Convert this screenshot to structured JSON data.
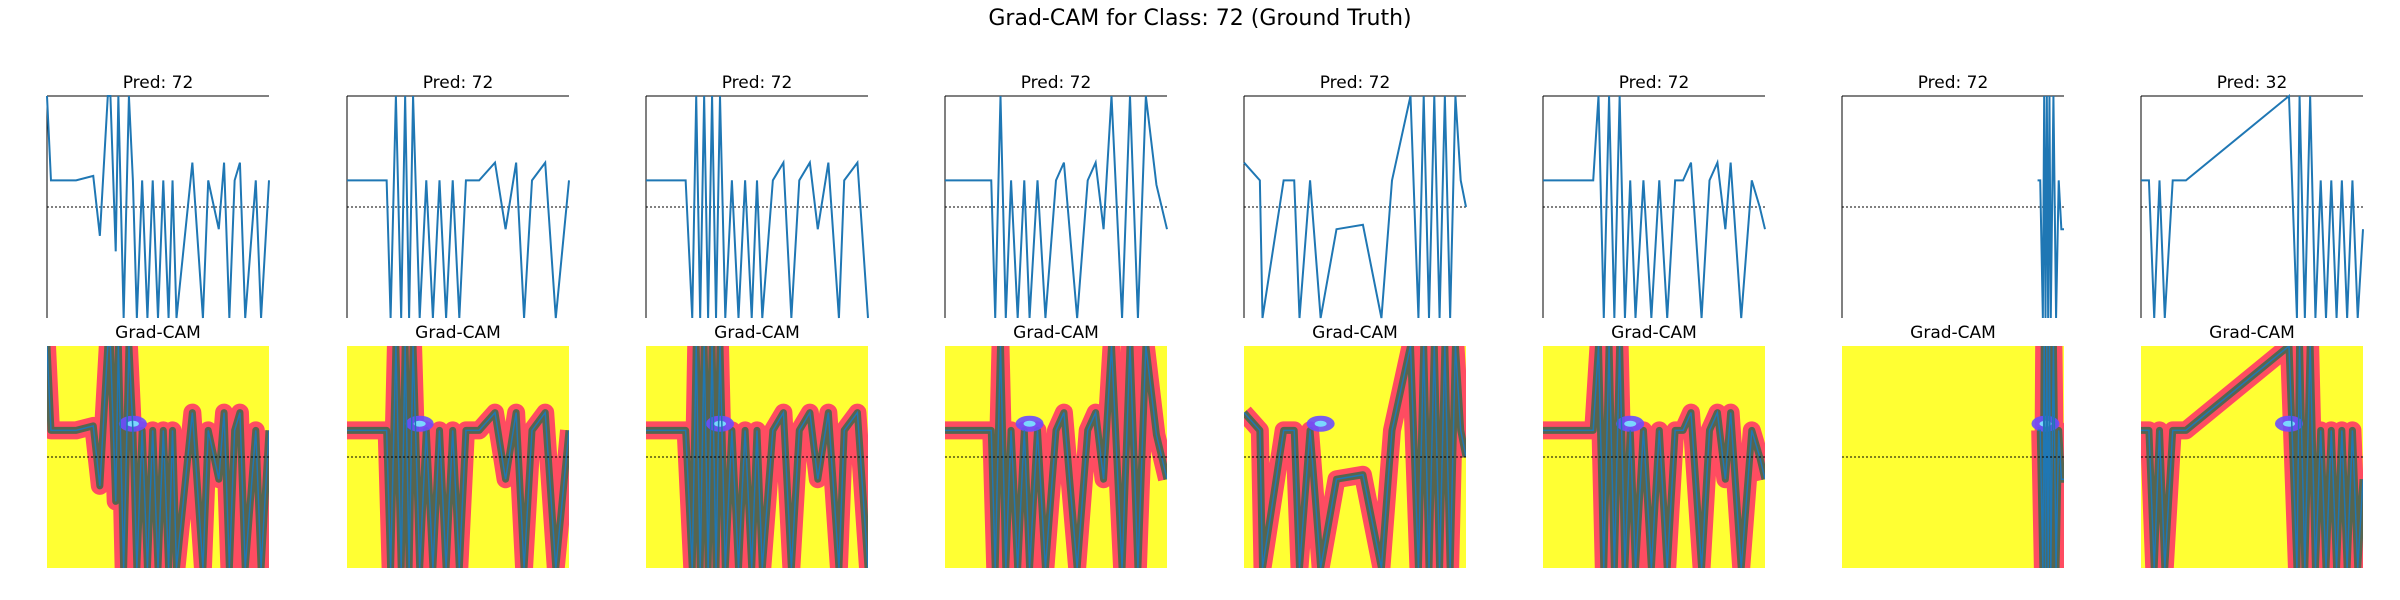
{
  "figure": {
    "title": "Grad-CAM for Class: 72 (Ground Truth)",
    "bottom_row_title": "Grad-CAM"
  },
  "colors": {
    "line": "#1f77b4",
    "heat_low": "#ffff33",
    "heat_mid": "#ff2d6a",
    "heat_high": "#2e6b4a",
    "heat_peak": "#6b4cff",
    "heat_core": "#7ad7ff",
    "threshold_line": "#000000"
  },
  "chart_data": [
    {
      "type": "line",
      "panel": 1,
      "title": "Pred: 72",
      "x": [
        0,
        3,
        22,
        35,
        40,
        46,
        48,
        52,
        54,
        58,
        62,
        65,
        68,
        72,
        76,
        80,
        84,
        88,
        92,
        95,
        98,
        110,
        118,
        122,
        130,
        134,
        138,
        142,
        146,
        150,
        158,
        162,
        168
      ],
      "y": [
        100,
        62,
        62,
        64,
        37,
        100,
        100,
        30,
        100,
        0,
        100,
        62,
        0,
        62,
        0,
        62,
        0,
        62,
        0,
        62,
        0,
        70,
        0,
        62,
        40,
        70,
        0,
        62,
        70,
        0,
        62,
        0,
        62
      ]
    },
    {
      "type": "line",
      "panel": 2,
      "title": "Pred: 72",
      "x": [
        0,
        30,
        33,
        37,
        41,
        44,
        47,
        50,
        55,
        60,
        65,
        70,
        75,
        80,
        85,
        90,
        100,
        112,
        120,
        128,
        134,
        140,
        150,
        158,
        168
      ],
      "y": [
        62,
        62,
        0,
        100,
        0,
        100,
        0,
        100,
        0,
        62,
        0,
        62,
        0,
        62,
        0,
        62,
        62,
        70,
        40,
        70,
        0,
        62,
        70,
        0,
        62
      ]
    },
    {
      "type": "line",
      "panel": 3,
      "title": "Pred: 72",
      "x": [
        0,
        30,
        35,
        38,
        41,
        44,
        47,
        50,
        53,
        56,
        60,
        65,
        70,
        75,
        80,
        84,
        88,
        96,
        104,
        110,
        116,
        124,
        130,
        138,
        146,
        150,
        160,
        168
      ],
      "y": [
        62,
        62,
        0,
        100,
        0,
        100,
        0,
        100,
        0,
        100,
        0,
        62,
        0,
        62,
        0,
        62,
        0,
        62,
        70,
        0,
        62,
        70,
        40,
        70,
        0,
        62,
        70,
        0
      ]
    },
    {
      "type": "line",
      "panel": 4,
      "title": "Pred: 72",
      "x": [
        0,
        35,
        38,
        42,
        46,
        50,
        55,
        60,
        64,
        70,
        76,
        84,
        90,
        100,
        108,
        114,
        120,
        126,
        134,
        140,
        146,
        152,
        160,
        168
      ],
      "y": [
        62,
        62,
        0,
        100,
        0,
        62,
        0,
        62,
        0,
        62,
        0,
        62,
        70,
        0,
        62,
        70,
        40,
        100,
        0,
        100,
        0,
        100,
        60,
        40
      ]
    },
    {
      "type": "line",
      "panel": 5,
      "title": "Pred: 72",
      "x": [
        0,
        12,
        14,
        30,
        38,
        42,
        50,
        58,
        70,
        90,
        104,
        112,
        126,
        132,
        136,
        140,
        144,
        148,
        152,
        156,
        160,
        164,
        168
      ],
      "y": [
        70,
        62,
        0,
        62,
        62,
        0,
        62,
        0,
        40,
        42,
        0,
        62,
        100,
        0,
        100,
        0,
        100,
        0,
        100,
        0,
        100,
        62,
        50
      ]
    },
    {
      "type": "line",
      "panel": 6,
      "title": "Pred: 72",
      "x": [
        0,
        38,
        42,
        46,
        50,
        54,
        58,
        62,
        66,
        70,
        76,
        82,
        88,
        94,
        100,
        106,
        112,
        120,
        126,
        132,
        138,
        142,
        150,
        158,
        164,
        168
      ],
      "y": [
        62,
        62,
        100,
        0,
        100,
        0,
        100,
        0,
        62,
        0,
        62,
        0,
        62,
        0,
        62,
        62,
        70,
        0,
        62,
        70,
        40,
        70,
        0,
        62,
        50,
        40
      ]
    },
    {
      "type": "line",
      "panel": 7,
      "title": "Pred: 72",
      "x": [
        148,
        150,
        152,
        153,
        154,
        155,
        156,
        157,
        158,
        160,
        162,
        164,
        166,
        168
      ],
      "y": [
        62,
        62,
        0,
        100,
        0,
        100,
        0,
        100,
        0,
        100,
        0,
        62,
        40,
        40
      ]
    },
    {
      "type": "line",
      "panel": 8,
      "title": "Pred: 32",
      "x": [
        0,
        6,
        10,
        14,
        18,
        24,
        34,
        112,
        118,
        120,
        124,
        128,
        132,
        136,
        140,
        144,
        148,
        152,
        156,
        160,
        164,
        168
      ],
      "y": [
        62,
        62,
        0,
        62,
        0,
        62,
        62,
        100,
        0,
        100,
        0,
        100,
        0,
        62,
        0,
        62,
        0,
        62,
        0,
        62,
        0,
        40
      ]
    }
  ]
}
